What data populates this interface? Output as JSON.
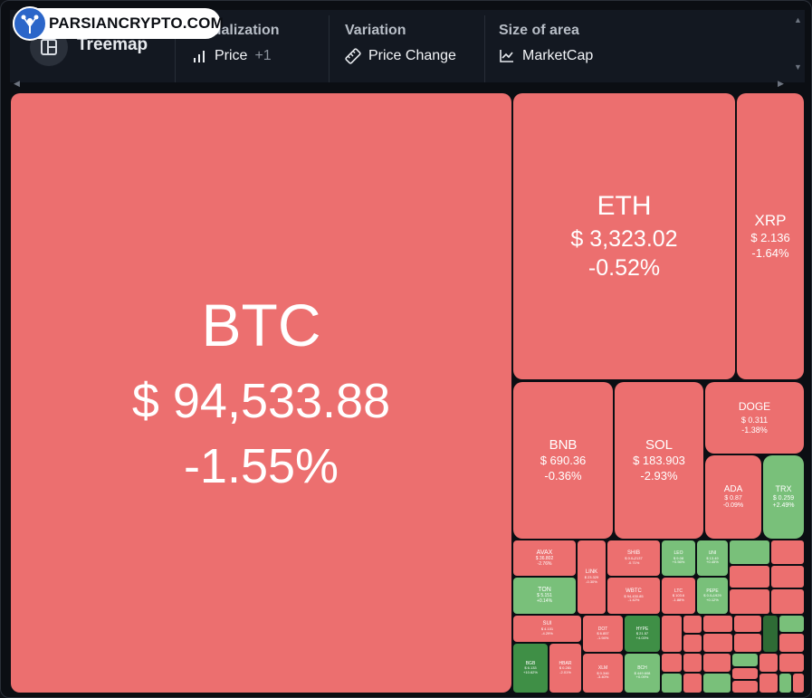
{
  "watermark": {
    "text": "PARSIANCRYPTO.COM"
  },
  "toolbar": {
    "view": {
      "label": "Treemap"
    },
    "visualization": {
      "title": "Visualization",
      "value": "Price",
      "extra": "+1"
    },
    "variation": {
      "title": "Variation",
      "value": "Price Change"
    },
    "size": {
      "title": "Size of area",
      "value": "MarketCap"
    }
  },
  "colors": {
    "negative": "#ec6f6f",
    "positive": "#79c07a",
    "positive_dark": "#3f8f46",
    "background": "#0b0e13"
  },
  "tiles": {
    "btc": {
      "symbol": "BTC",
      "price": "$ 94,533.88",
      "change": "-1.55%"
    },
    "eth": {
      "symbol": "ETH",
      "price": "$ 3,323.02",
      "change": "-0.52%"
    },
    "xrp": {
      "symbol": "XRP",
      "price": "$ 2.136",
      "change": "-1.64%"
    },
    "bnb": {
      "symbol": "BNB",
      "price": "$ 690.36",
      "change": "-0.36%"
    },
    "sol": {
      "symbol": "SOL",
      "price": "$ 183.903",
      "change": "-2.93%"
    },
    "doge": {
      "symbol": "DOGE",
      "price": "$ 0.311",
      "change": "-1.38%"
    },
    "ada": {
      "symbol": "ADA",
      "price": "$ 0.87",
      "change": "-0.09%"
    },
    "trx": {
      "symbol": "TRX",
      "price": "$ 0.259",
      "change": "+2.49%"
    },
    "avax": {
      "symbol": "AVAX",
      "price": "$ 36.802",
      "change": "-2.76%"
    },
    "link": {
      "symbol": "LINK",
      "price": "$ 23.329",
      "change": "-0.30%"
    },
    "shib": {
      "symbol": "SHIB",
      "price": "$ 0.0₄2137",
      "change": "-0.71%"
    },
    "ton": {
      "symbol": "TON",
      "price": "$ 5.151",
      "change": "+0.14%"
    },
    "wbtc": {
      "symbol": "WBTC",
      "price": "$ 94,430.85",
      "change": "-1.42%"
    },
    "sui": {
      "symbol": "SUI",
      "price": "$ 4.101",
      "change": "-4.29%"
    },
    "dot": {
      "symbol": "DOT",
      "price": "$ 6.857",
      "change": "-1.94%"
    },
    "hype": {
      "symbol": "HYPE",
      "price": "$ 21.57",
      "change": "+4.03%"
    },
    "bgb": {
      "symbol": "BGB",
      "price": "$ 6.133",
      "change": "+10.62%"
    },
    "hbar": {
      "symbol": "HBAR",
      "price": "$ 0.281",
      "change": "-2.01%"
    },
    "xlm": {
      "symbol": "XLM",
      "price": "$ 0.346",
      "change": "-3.40%"
    },
    "bch": {
      "symbol": "BCH",
      "price": "$ 449.608",
      "change": "+0.09%"
    },
    "leo": {
      "symbol": "LEO",
      "price": "$ 9.08",
      "change": "+0.56%"
    },
    "uni": {
      "symbol": "UNI",
      "price": "$ 13.49",
      "change": "+0.45%"
    },
    "ltc": {
      "symbol": "LTC",
      "price": "$ 103.6",
      "change": "-1.88%"
    },
    "pepe": {
      "symbol": "PEPE",
      "price": "$ 0.0₄1929",
      "change": "+0.12%"
    }
  }
}
